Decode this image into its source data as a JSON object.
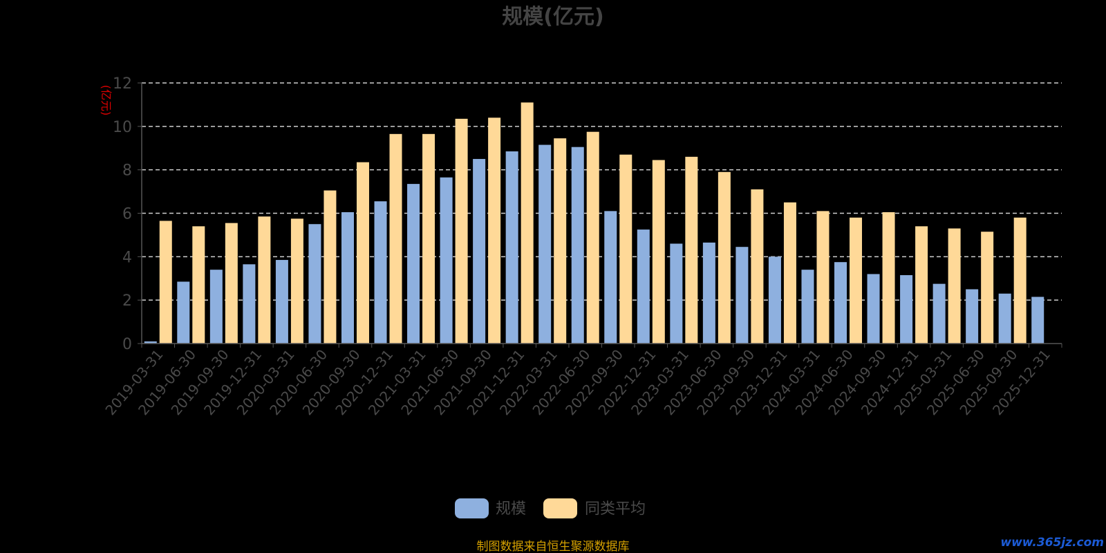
{
  "chart_data": {
    "type": "bar",
    "title": "规模(亿元)",
    "ylabel": "(亿元)",
    "xlabel": "",
    "ylim": [
      0,
      12
    ],
    "yticks": [
      0,
      2,
      4,
      6,
      8,
      10,
      12
    ],
    "grid": true,
    "legend_position": "bottom",
    "categories": [
      "2019-03-31",
      "2019-06-30",
      "2019-09-30",
      "2019-12-31",
      "2020-03-31",
      "2020-06-30",
      "2020-09-30",
      "2020-12-31",
      "2021-03-31",
      "2021-06-30",
      "2021-09-30",
      "2021-12-31",
      "2022-03-31",
      "2022-06-30",
      "2022-09-30",
      "2022-12-31",
      "2023-03-31",
      "2023-06-30",
      "2023-09-30",
      "2023-12-31",
      "2024-03-31",
      "2024-06-30",
      "2024-09-30",
      "2024-12-31",
      "2025-03-31",
      "2025-06-30",
      "2025-09-30",
      "2025-12-31"
    ],
    "series": [
      {
        "name": "规模",
        "color": "#8eb0df",
        "values": [
          0.1,
          2.85,
          3.4,
          3.65,
          3.85,
          5.5,
          6.05,
          6.55,
          7.35,
          7.65,
          8.5,
          8.85,
          9.15,
          9.05,
          6.1,
          5.25,
          4.6,
          4.65,
          4.45,
          4.0,
          3.4,
          3.75,
          3.2,
          3.15,
          2.75,
          2.5,
          2.3,
          2.15
        ]
      },
      {
        "name": "同类平均",
        "color": "#ffd998",
        "values": [
          5.65,
          5.4,
          5.55,
          5.85,
          5.75,
          7.05,
          8.35,
          9.65,
          9.65,
          10.35,
          10.4,
          11.1,
          9.45,
          9.75,
          8.7,
          8.45,
          8.6,
          7.9,
          7.1,
          6.5,
          6.1,
          5.8,
          6.05,
          5.4,
          5.3,
          5.15,
          5.8,
          null
        ]
      }
    ]
  },
  "footer": {
    "source": "制图数据来自恒生聚源数据库",
    "watermark": "www.365jz.com"
  }
}
